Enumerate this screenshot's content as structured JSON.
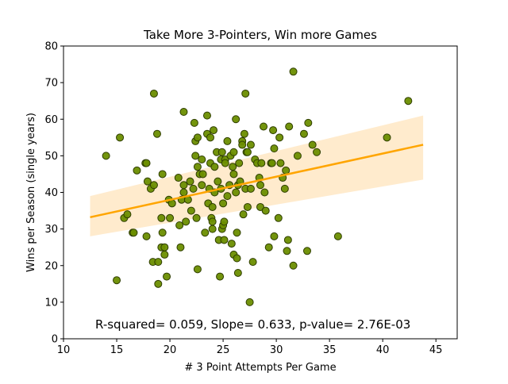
{
  "chart_data": {
    "type": "scatter",
    "title": "Take More 3-Pointers, Win more Games",
    "xlabel": "# 3 Point Attempts Per Game",
    "ylabel": "Wins per Season (single years)",
    "xlim": [
      10,
      47
    ],
    "ylim": [
      0,
      80
    ],
    "xticks": [
      10,
      15,
      20,
      25,
      30,
      35,
      40,
      45
    ],
    "yticks": [
      0,
      10,
      20,
      30,
      40,
      50,
      60,
      70,
      80
    ],
    "grid": false,
    "annotation": "R-squared= 0.059, Slope= 0.633, p-value= 2.76E-03",
    "colors": {
      "point_fill": "#6b8e00",
      "point_edge": "#2e3d00",
      "line": "#ffa500",
      "band": "#ffe7c4"
    },
    "regression": {
      "slope": 0.633,
      "intercept": 25.3,
      "x_range": [
        12.5,
        43.8
      ],
      "band_lower": [
        28.0,
        43.5
      ],
      "band_upper": [
        39.0,
        61.0
      ]
    },
    "points": [
      [
        14.0,
        50
      ],
      [
        15.0,
        16
      ],
      [
        15.3,
        55
      ],
      [
        15.7,
        33
      ],
      [
        16.0,
        34
      ],
      [
        16.5,
        29
      ],
      [
        16.6,
        29
      ],
      [
        16.9,
        46
      ],
      [
        17.7,
        48
      ],
      [
        17.8,
        48
      ],
      [
        17.8,
        28
      ],
      [
        17.9,
        43
      ],
      [
        18.2,
        41
      ],
      [
        18.4,
        21
      ],
      [
        18.5,
        67
      ],
      [
        18.5,
        42
      ],
      [
        18.8,
        56
      ],
      [
        18.9,
        21
      ],
      [
        18.9,
        15
      ],
      [
        19.2,
        33
      ],
      [
        19.2,
        25
      ],
      [
        19.3,
        45
      ],
      [
        19.3,
        29
      ],
      [
        19.5,
        23
      ],
      [
        19.5,
        25
      ],
      [
        19.7,
        17
      ],
      [
        19.9,
        38
      ],
      [
        20.0,
        33
      ],
      [
        20.2,
        37
      ],
      [
        20.8,
        44
      ],
      [
        20.9,
        31
      ],
      [
        21.0,
        25
      ],
      [
        21.1,
        38
      ],
      [
        21.3,
        62
      ],
      [
        21.3,
        42
      ],
      [
        21.3,
        40
      ],
      [
        21.5,
        32
      ],
      [
        21.7,
        38
      ],
      [
        21.9,
        43
      ],
      [
        22.0,
        35
      ],
      [
        22.2,
        41
      ],
      [
        22.3,
        59
      ],
      [
        22.4,
        54
      ],
      [
        22.4,
        50
      ],
      [
        22.5,
        33
      ],
      [
        22.6,
        19
      ],
      [
        22.6,
        55
      ],
      [
        22.6,
        47
      ],
      [
        22.8,
        45
      ],
      [
        23.0,
        42
      ],
      [
        23.0,
        49
      ],
      [
        23.1,
        45
      ],
      [
        23.3,
        29
      ],
      [
        23.5,
        61
      ],
      [
        23.5,
        56
      ],
      [
        23.6,
        37
      ],
      [
        23.7,
        41
      ],
      [
        23.8,
        55
      ],
      [
        23.8,
        48
      ],
      [
        23.9,
        33
      ],
      [
        24.0,
        30
      ],
      [
        24.0,
        32
      ],
      [
        24.0,
        36
      ],
      [
        24.1,
        57
      ],
      [
        24.2,
        47
      ],
      [
        24.2,
        40
      ],
      [
        24.4,
        51
      ],
      [
        24.5,
        43
      ],
      [
        24.6,
        27
      ],
      [
        24.7,
        17
      ],
      [
        24.8,
        49
      ],
      [
        24.8,
        41
      ],
      [
        24.9,
        51
      ],
      [
        24.9,
        30
      ],
      [
        25.0,
        31
      ],
      [
        25.0,
        37
      ],
      [
        25.1,
        27
      ],
      [
        25.1,
        32
      ],
      [
        25.2,
        49
      ],
      [
        25.2,
        48
      ],
      [
        25.4,
        39
      ],
      [
        25.4,
        54
      ],
      [
        25.6,
        42
      ],
      [
        25.7,
        50
      ],
      [
        25.8,
        26
      ],
      [
        25.9,
        47
      ],
      [
        26.0,
        23
      ],
      [
        26.0,
        51
      ],
      [
        26.0,
        45
      ],
      [
        26.2,
        60
      ],
      [
        26.2,
        40
      ],
      [
        26.3,
        22
      ],
      [
        26.3,
        29
      ],
      [
        26.4,
        42
      ],
      [
        26.4,
        18
      ],
      [
        26.5,
        48
      ],
      [
        26.6,
        43
      ],
      [
        26.8,
        54
      ],
      [
        26.8,
        53
      ],
      [
        26.9,
        34
      ],
      [
        27.0,
        56
      ],
      [
        27.1,
        67
      ],
      [
        27.1,
        41
      ],
      [
        27.2,
        51
      ],
      [
        27.3,
        51
      ],
      [
        27.3,
        36
      ],
      [
        27.5,
        10
      ],
      [
        27.6,
        53
      ],
      [
        27.6,
        41
      ],
      [
        27.8,
        21
      ],
      [
        28.0,
        49
      ],
      [
        28.2,
        48
      ],
      [
        28.4,
        44
      ],
      [
        28.5,
        36
      ],
      [
        28.5,
        42
      ],
      [
        28.6,
        48
      ],
      [
        28.8,
        58
      ],
      [
        28.9,
        40
      ],
      [
        29.0,
        35
      ],
      [
        29.3,
        25
      ],
      [
        29.5,
        48
      ],
      [
        29.6,
        48
      ],
      [
        29.7,
        57
      ],
      [
        29.8,
        52
      ],
      [
        29.8,
        28
      ],
      [
        30.2,
        33
      ],
      [
        30.3,
        55
      ],
      [
        30.4,
        48
      ],
      [
        30.6,
        44
      ],
      [
        30.8,
        41
      ],
      [
        30.9,
        46
      ],
      [
        31.0,
        24
      ],
      [
        31.1,
        27
      ],
      [
        31.2,
        58
      ],
      [
        31.6,
        73
      ],
      [
        31.6,
        20
      ],
      [
        32.0,
        50
      ],
      [
        32.6,
        56
      ],
      [
        32.9,
        24
      ],
      [
        33.0,
        59
      ],
      [
        33.4,
        53
      ],
      [
        33.8,
        51
      ],
      [
        35.8,
        28
      ],
      [
        40.4,
        55
      ],
      [
        42.4,
        65
      ]
    ]
  }
}
